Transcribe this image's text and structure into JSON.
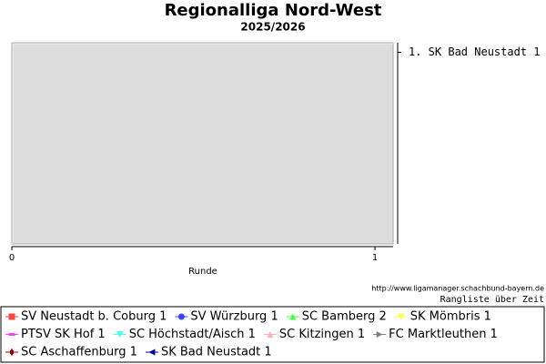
{
  "chart_data": {
    "type": "line",
    "title": "Regionalliga Nord-West",
    "subtitle": "2025/2026",
    "xlabel": "Runde",
    "xlim": [
      0,
      1.05
    ],
    "xticks": [
      0,
      1
    ],
    "ylim": [
      0.95,
      2
    ],
    "y_inverted": true,
    "yticks": [
      {
        "value": 1,
        "label": "1. SK Bad Neustadt 1"
      }
    ],
    "source": "http://www.ligamanager.schachbund-bayern.de",
    "caption": "Rangliste über Zeit",
    "plot_background": "#dddddd",
    "series": [
      {
        "name": "SV Neustadt b. Coburg 1",
        "color": "#ff4040",
        "marker": "square"
      },
      {
        "name": "SV Würzburg 1",
        "color": "#4040ff",
        "marker": "circle"
      },
      {
        "name": "SC Bamberg 2",
        "color": "#40ff40",
        "marker": "triangle-up"
      },
      {
        "name": "SK Mömbris 1",
        "color": "#ffff40",
        "marker": "triangle-down"
      },
      {
        "name": "PTSV SK Hof 1",
        "color": "#ff40ff",
        "marker": "dash"
      },
      {
        "name": "SC Höchstadt/Aisch 1",
        "color": "#40ffff",
        "marker": "triangle-down"
      },
      {
        "name": "SC Kitzingen 1",
        "color": "#ffb0b0",
        "marker": "triangle-up"
      },
      {
        "name": "FC Marktleuthen 1",
        "color": "#808080",
        "marker": "triangle-right"
      },
      {
        "name": "SC Aschaffenburg 1",
        "color": "#a00000",
        "marker": "plus"
      },
      {
        "name": "SK Bad Neustadt 1",
        "color": "#0000a0",
        "marker": "triangle-left"
      }
    ]
  }
}
